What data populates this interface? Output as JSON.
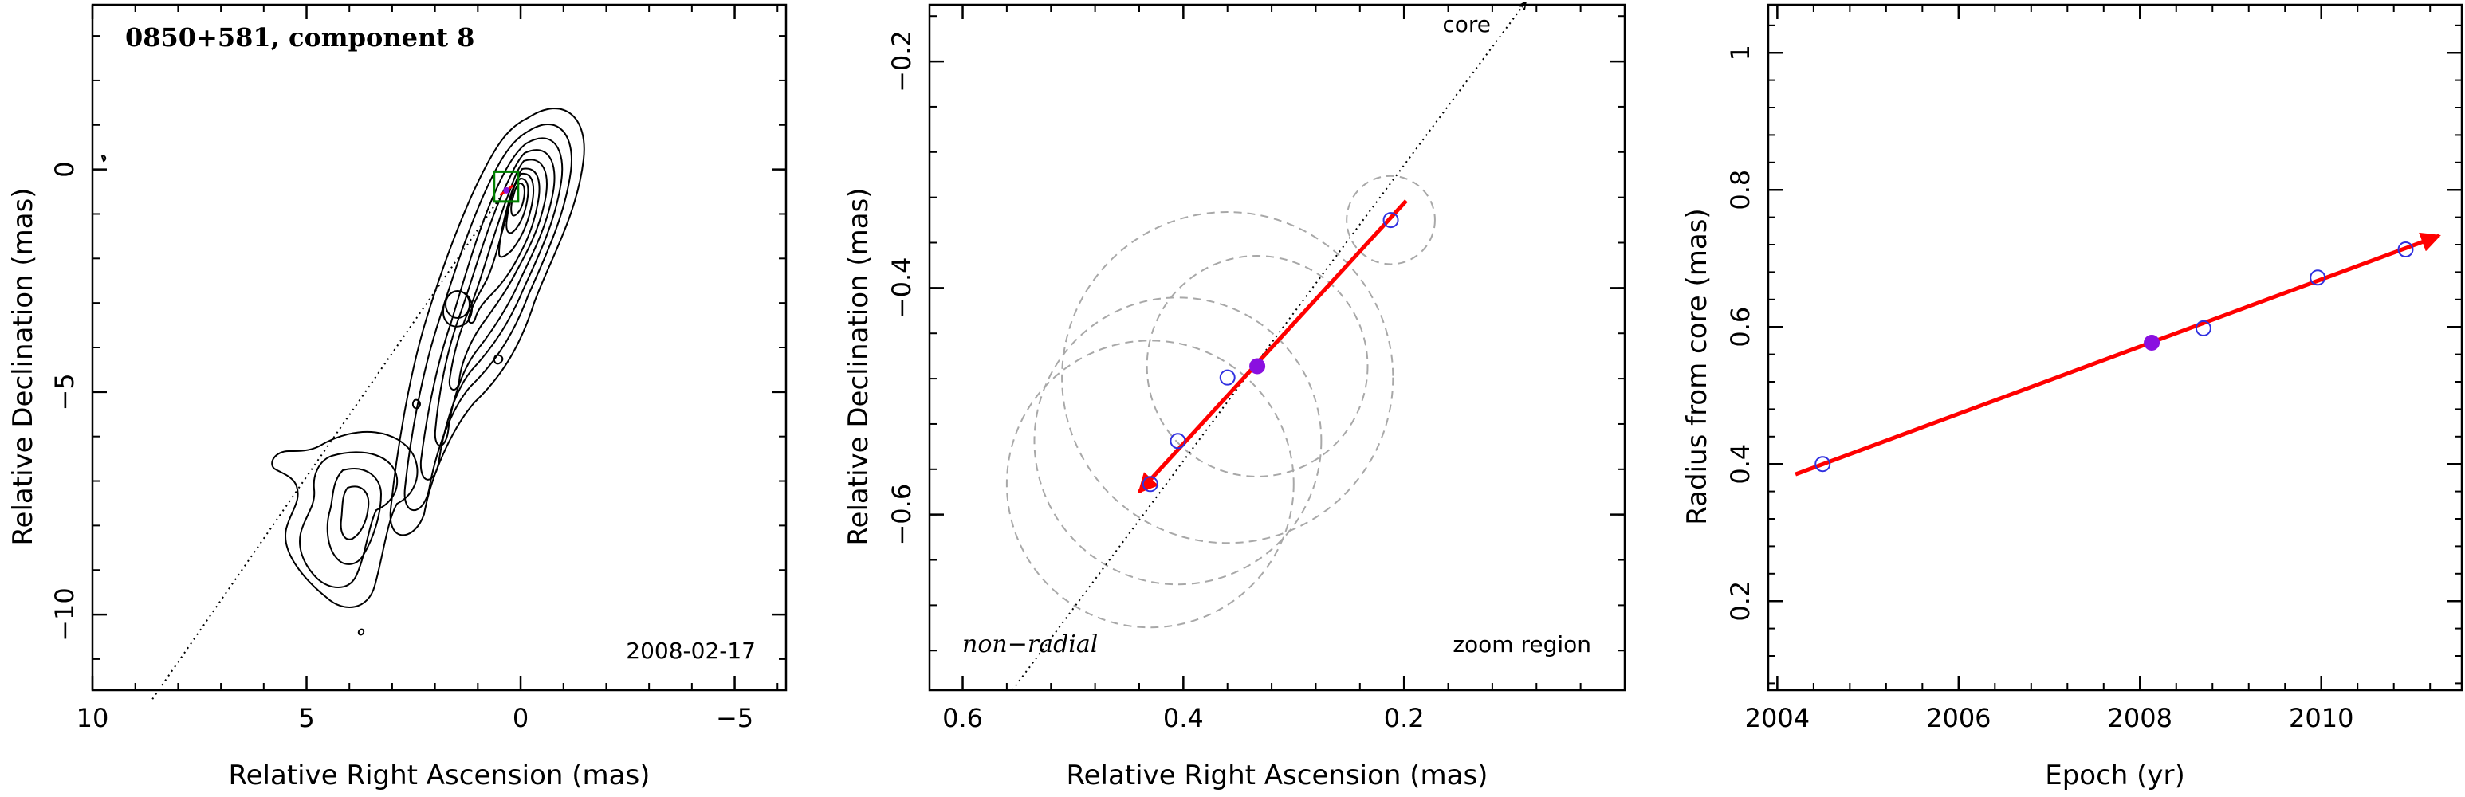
{
  "colors": {
    "fit_arrow": "#ff0000",
    "epoch_marker": "#3030e0",
    "epoch_filled": "#8a10e0",
    "beam_circle": "#a8a8a8",
    "zoom_box": "#008000",
    "contour": "#000000"
  },
  "chart_data": [
    {
      "type": "contour",
      "title": "0850+581, component 8",
      "date_label": "2008-02-17",
      "xlabel": "Relative Right Ascension (mas)",
      "ylabel": "Relative Declination (mas)",
      "xlim": [
        10,
        -6.2
      ],
      "ylim": [
        -11.7,
        3.7
      ],
      "xticks": [
        10,
        5,
        0,
        -5
      ],
      "xtick_labels": [
        "10",
        "5",
        "0",
        "−5"
      ],
      "yticks": [
        0,
        -5,
        -10
      ],
      "ytick_labels": [
        "0",
        "−5",
        "−10"
      ],
      "radial_line": {
        "from": [
          8.6,
          -11.9
        ],
        "to": [
          0.35,
          -0.45
        ],
        "style": "dotted"
      },
      "zoom_box": {
        "x": [
          0.06,
          0.62
        ],
        "y": [
          -0.72,
          -0.05
        ]
      },
      "component_marker": {
        "x": 0.33,
        "y": -0.47
      }
    },
    {
      "type": "scatter",
      "title": "",
      "xlabel": "Relative Right Ascension (mas)",
      "ylabel": "Relative Declination (mas)",
      "xlim": [
        0.63,
        0.0
      ],
      "ylim": [
        -0.755,
        -0.15
      ],
      "xticks": [
        0.6,
        0.4,
        0.2
      ],
      "xtick_labels": [
        "0.6",
        "0.4",
        "0.2"
      ],
      "yticks": [
        -0.2,
        -0.4,
        -0.6
      ],
      "ytick_labels": [
        "−0.2",
        "−0.4",
        "−0.6"
      ],
      "annotations": {
        "core": "core",
        "non_radial": "non−radial",
        "zoom": "zoom region"
      },
      "points": [
        {
          "x": 0.43,
          "y": -0.573,
          "filled": false
        },
        {
          "x": 0.405,
          "y": -0.535,
          "filled": false
        },
        {
          "x": 0.36,
          "y": -0.479,
          "filled": false
        },
        {
          "x": 0.333,
          "y": -0.469,
          "filled": true
        },
        {
          "x": 0.212,
          "y": -0.34,
          "filled": false
        }
      ],
      "circles": [
        {
          "x": 0.43,
          "y": -0.573,
          "r": 0.13
        },
        {
          "x": 0.405,
          "y": -0.535,
          "r": 0.13
        },
        {
          "x": 0.36,
          "y": -0.479,
          "r": 0.15
        },
        {
          "x": 0.333,
          "y": -0.469,
          "r": 0.1
        },
        {
          "x": 0.212,
          "y": -0.34,
          "r": 0.04
        }
      ],
      "radial_line": {
        "from": [
          0.555,
          -0.755
        ],
        "to": [
          0.09,
          -0.148
        ],
        "style": "dotted"
      },
      "fit_arrow": {
        "from": [
          0.198,
          -0.323
        ],
        "to": [
          0.44,
          -0.58
        ]
      }
    },
    {
      "type": "scatter",
      "title": "",
      "xlabel": "Epoch (yr)",
      "ylabel": "Radius from core (mas)",
      "xlim": [
        2003.9,
        2011.55
      ],
      "ylim": [
        0.07,
        1.07
      ],
      "xticks": [
        2004,
        2006,
        2008,
        2010
      ],
      "xtick_labels": [
        "2004",
        "2006",
        "2008",
        "2010"
      ],
      "yticks": [
        0.2,
        0.4,
        0.6,
        0.8,
        1.0
      ],
      "ytick_labels": [
        "0.2",
        "0.4",
        "0.6",
        "0.8",
        "1"
      ],
      "points": [
        {
          "x": 2004.5,
          "y": 0.4,
          "filled": false
        },
        {
          "x": 2008.13,
          "y": 0.577,
          "filled": true
        },
        {
          "x": 2008.7,
          "y": 0.598,
          "filled": false
        },
        {
          "x": 2009.96,
          "y": 0.672,
          "filled": false
        },
        {
          "x": 2010.93,
          "y": 0.713,
          "filled": false
        }
      ],
      "fit_line": {
        "from": [
          2004.2,
          0.385
        ],
        "to": [
          2011.3,
          0.733
        ]
      }
    }
  ]
}
